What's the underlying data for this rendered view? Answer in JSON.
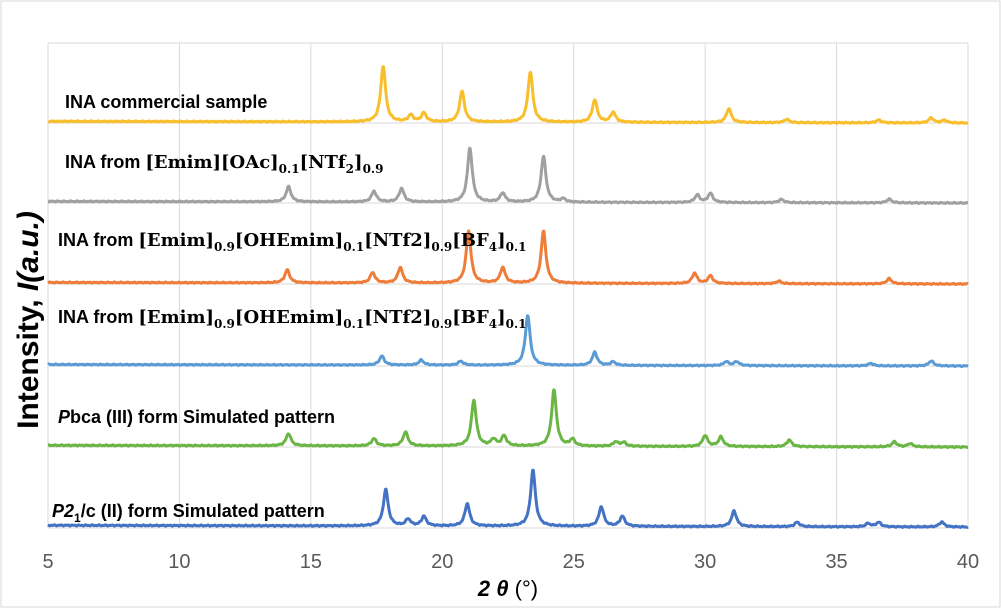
{
  "chart_data": {
    "type": "line",
    "ylabel_text": "Intensity, ",
    "ylabel_italic": "I(a.u.)",
    "xlabel_main": "2 θ",
    "xlabel_unit": " (°)",
    "xlim": [
      5,
      40
    ],
    "xticks": [
      5,
      10,
      15,
      20,
      25,
      30,
      35,
      40
    ],
    "grid": true,
    "series": [
      {
        "name": "INA commercial sample",
        "color": "#F9BE2B",
        "baseline_level": 5,
        "peaks": [
          [
            17.75,
            1.0
          ],
          [
            18.8,
            0.12
          ],
          [
            19.3,
            0.16
          ],
          [
            20.75,
            0.55
          ],
          [
            23.35,
            0.9
          ],
          [
            25.8,
            0.4
          ],
          [
            26.5,
            0.18
          ],
          [
            30.9,
            0.25
          ],
          [
            33.1,
            0.06
          ],
          [
            36.6,
            0.05
          ],
          [
            38.6,
            0.09
          ],
          [
            39.1,
            0.05
          ]
        ]
      },
      {
        "name": "INA from [Emim][OAc]0.1[NTf2]0.9",
        "color": "#A0A0A0",
        "baseline_level": 4,
        "peaks": [
          [
            14.15,
            0.28
          ],
          [
            17.4,
            0.2
          ],
          [
            18.45,
            0.25
          ],
          [
            21.05,
            1.0
          ],
          [
            22.3,
            0.17
          ],
          [
            23.85,
            0.85
          ],
          [
            24.6,
            0.06
          ],
          [
            29.7,
            0.14
          ],
          [
            30.2,
            0.17
          ],
          [
            32.9,
            0.06
          ],
          [
            37.0,
            0.07
          ]
        ]
      },
      {
        "name": "INA from [Emim]0.9[OHEmim]0.1[NTf2]0.9[BF4]0.1",
        "color": "#EE7D3A",
        "baseline_level": 3,
        "peaks": [
          [
            14.1,
            0.25
          ],
          [
            17.35,
            0.2
          ],
          [
            18.4,
            0.3
          ],
          [
            21.0,
            1.0
          ],
          [
            22.3,
            0.3
          ],
          [
            23.85,
            1.0
          ],
          [
            29.6,
            0.2
          ],
          [
            30.2,
            0.15
          ],
          [
            32.8,
            0.05
          ],
          [
            37.0,
            0.1
          ]
        ]
      },
      {
        "name": "INA from [Emim]0.9[OHEmim]0.1[NTf2]0.9[BF4]0.1",
        "color": "#5B9BD5",
        "baseline_level": 2,
        "peaks": [
          [
            17.7,
            0.18
          ],
          [
            19.2,
            0.1
          ],
          [
            20.7,
            0.08
          ],
          [
            23.25,
            1.0
          ],
          [
            25.8,
            0.26
          ],
          [
            26.5,
            0.07
          ],
          [
            30.8,
            0.08
          ],
          [
            31.2,
            0.08
          ],
          [
            36.3,
            0.05
          ],
          [
            38.6,
            0.1
          ]
        ]
      },
      {
        "name": "Pbca (III) form Simulated pattern",
        "color": "#6BB545",
        "baseline_level": 1,
        "peaks": [
          [
            14.15,
            0.22
          ],
          [
            17.4,
            0.13
          ],
          [
            18.6,
            0.25
          ],
          [
            21.2,
            0.82
          ],
          [
            21.95,
            0.12
          ],
          [
            22.35,
            0.18
          ],
          [
            24.25,
            1.0
          ],
          [
            24.95,
            0.12
          ],
          [
            26.6,
            0.08
          ],
          [
            26.9,
            0.07
          ],
          [
            30.0,
            0.2
          ],
          [
            30.6,
            0.17
          ],
          [
            33.2,
            0.12
          ],
          [
            37.2,
            0.09
          ],
          [
            37.8,
            0.06
          ]
        ]
      },
      {
        "name": "P21/c (II) form Simulated pattern",
        "color": "#4472C4",
        "baseline_level": 0,
        "peaks": [
          [
            17.85,
            0.65
          ],
          [
            18.7,
            0.12
          ],
          [
            19.3,
            0.17
          ],
          [
            20.95,
            0.4
          ],
          [
            23.45,
            1.0
          ],
          [
            26.05,
            0.35
          ],
          [
            26.85,
            0.18
          ],
          [
            31.1,
            0.28
          ],
          [
            33.5,
            0.08
          ],
          [
            36.2,
            0.06
          ],
          [
            36.6,
            0.08
          ],
          [
            39.0,
            0.09
          ]
        ]
      }
    ]
  },
  "labels": {
    "s0_main": "INA commercial sample",
    "s1_prefix": "INA from ",
    "s1_chem": "[Emim][OAc]",
    "s1_sub1": "0.1",
    "s1_chem2": "[NTf",
    "s1_sub2": "2",
    "s1_chem3": "]",
    "s1_sub3": "0.9",
    "s2_prefix": "INA from ",
    "s2_c1": "[Emim]",
    "s2_s1": "0.9",
    "s2_c2": "[OHEmim]",
    "s2_s2": "0.1",
    "s2_c3": "[NTf2]",
    "s2_s3": "0.9",
    "s2_c4": "[BF",
    "s2_s4": "4",
    "s2_c5": "]",
    "s2_s5": "0.1",
    "s3_prefix": "INA from ",
    "s3_c1": "[Emim]",
    "s3_s1": "0.9",
    "s3_c2": "[OHEmim]",
    "s3_s2": "0.1",
    "s3_c3": "[NTf2]",
    "s3_s3": "0.9",
    "s3_c4": "[BF",
    "s3_s4": "4",
    "s3_c5": "]",
    "s3_s5": "0.1",
    "s4_italic": "P",
    "s4_rest": "bca (III)  form Simulated pattern",
    "s5_italic": "P",
    "s5_mid": "2",
    "s5_sub": "1",
    "s5_rest": "/c (II)  form Simulated pattern"
  }
}
